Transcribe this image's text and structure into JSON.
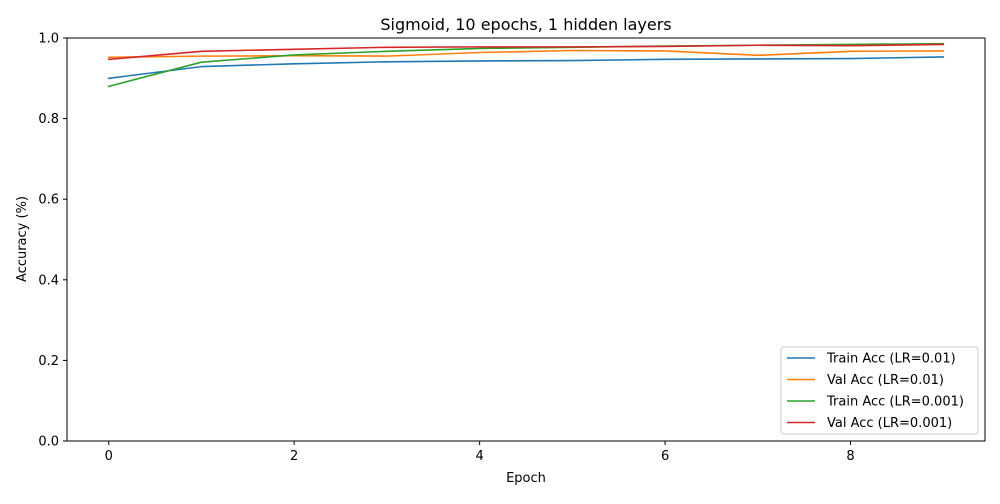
{
  "chart_data": {
    "type": "line",
    "title": "Sigmoid, 10 epochs, 1 hidden layers",
    "xlabel": "Epoch",
    "ylabel": "Accuracy (%)",
    "xlim": [
      -0.45,
      9.45
    ],
    "ylim": [
      0,
      1
    ],
    "x_ticks": [
      0,
      2,
      4,
      6,
      8
    ],
    "x_tick_labels": [
      "0",
      "2",
      "4",
      "6",
      "8"
    ],
    "y_ticks": [
      0,
      0.2,
      0.4,
      0.6,
      0.8,
      1.0
    ],
    "y_tick_labels": [
      "0.0",
      "0.2",
      "0.4",
      "0.6",
      "0.8",
      "1.0"
    ],
    "grid": false,
    "legend_position": "bottom-right",
    "x": [
      0,
      1,
      2,
      3,
      4,
      5,
      6,
      7,
      8,
      9
    ],
    "series": [
      {
        "name": "Train Acc (LR=0.01)",
        "color": "#1f77b4",
        "values": [
          0.9,
          0.929,
          0.936,
          0.941,
          0.943,
          0.944,
          0.947,
          0.948,
          0.949,
          0.953
        ]
      },
      {
        "name": "Val Acc (LR=0.01)",
        "color": "#ff7f0e",
        "values": [
          0.952,
          0.955,
          0.956,
          0.955,
          0.964,
          0.969,
          0.968,
          0.957,
          0.967,
          0.968
        ]
      },
      {
        "name": "Train Acc (LR=0.001)",
        "color": "#2ca02c",
        "values": [
          0.88,
          0.94,
          0.958,
          0.967,
          0.974,
          0.977,
          0.98,
          0.982,
          0.984,
          0.986
        ]
      },
      {
        "name": "Val Acc (LR=0.001)",
        "color": "#d62728",
        "values": [
          0.947,
          0.967,
          0.972,
          0.977,
          0.978,
          0.978,
          0.979,
          0.982,
          0.981,
          0.984
        ]
      }
    ]
  }
}
